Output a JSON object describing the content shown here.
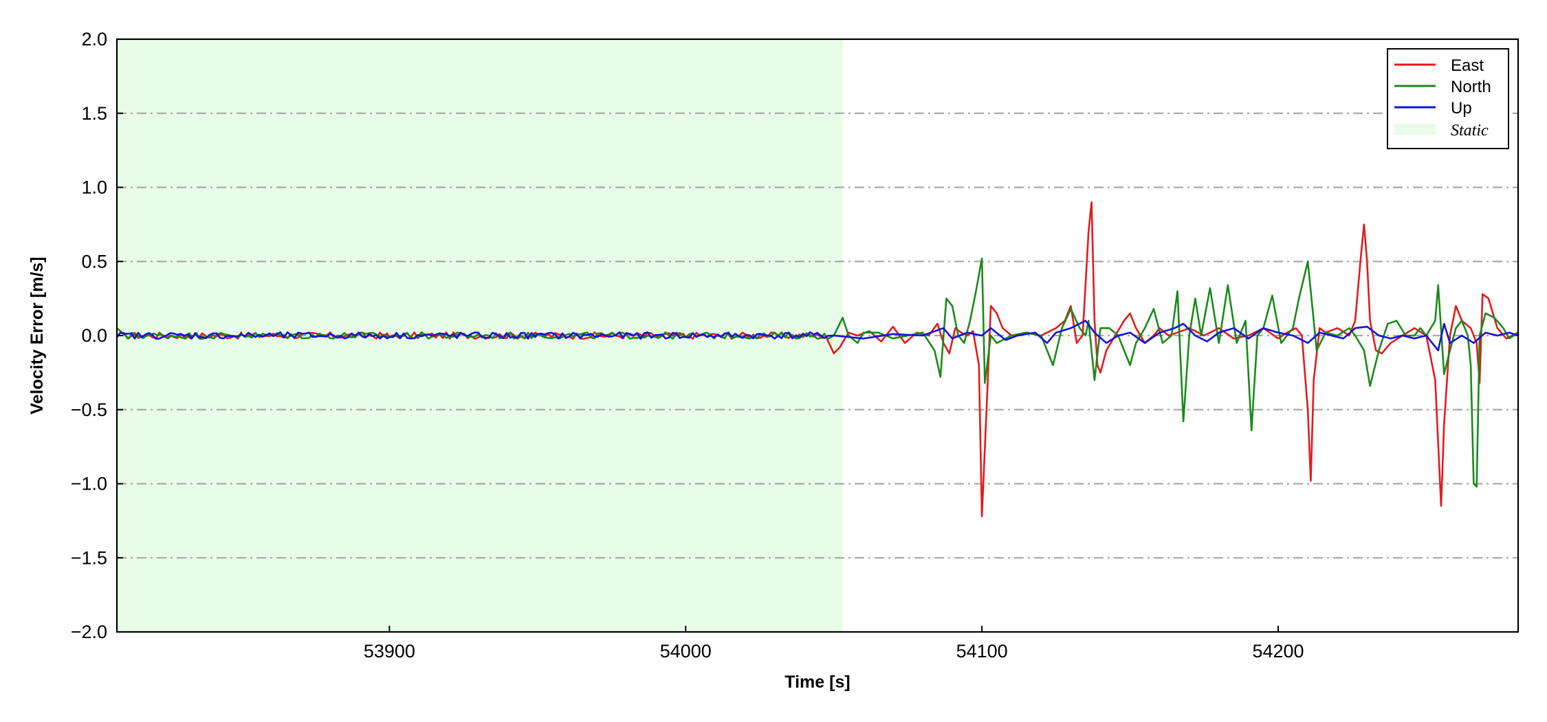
{
  "chart_data": {
    "type": "line",
    "title": "",
    "xlabel": "Time [s]",
    "ylabel": "Velocity Error [m/s]",
    "xlim": [
      53808,
      54281
    ],
    "ylim": [
      -2.0,
      2.0
    ],
    "xticks": [
      53900,
      54000,
      54100,
      54200
    ],
    "xtick_labels": [
      "53900",
      "54000",
      "54100",
      "54200"
    ],
    "yticks": [
      -2.0,
      -1.5,
      -1.0,
      -0.5,
      0.0,
      0.5,
      1.0,
      1.5,
      2.0
    ],
    "ytick_labels": [
      "−2.0",
      "−1.5",
      "−1.0",
      "−0.5",
      "0.0",
      "0.5",
      "1.0",
      "1.5",
      "2.0"
    ],
    "grid": "horizontal dash-dot at major y ticks",
    "legend_position": "top-right",
    "static_region": {
      "label": "Static",
      "x_start": 53808,
      "x_end": 54053,
      "color": "#e8fde8"
    },
    "series": [
      {
        "name": "East",
        "color": "#e41a1c",
        "points": [
          [
            53808,
            -0.01
          ],
          [
            53850,
            0.01
          ],
          [
            53900,
            -0.01
          ],
          [
            53950,
            0.01
          ],
          [
            54000,
            -0.01
          ],
          [
            54045,
            0.0
          ],
          [
            54050,
            -0.12
          ],
          [
            54052,
            -0.08
          ],
          [
            54055,
            0.02
          ],
          [
            54058,
            0.0
          ],
          [
            54062,
            0.03
          ],
          [
            54066,
            -0.04
          ],
          [
            54070,
            0.06
          ],
          [
            54074,
            -0.05
          ],
          [
            54078,
            0.02
          ],
          [
            54082,
            0.0
          ],
          [
            54085,
            0.08
          ],
          [
            54087,
            -0.05
          ],
          [
            54089,
            -0.12
          ],
          [
            54091,
            0.05
          ],
          [
            54093,
            0.02
          ],
          [
            54095,
            0.0
          ],
          [
            54097,
            0.03
          ],
          [
            54099,
            -0.2
          ],
          [
            54100,
            -1.22
          ],
          [
            54102,
            -0.3
          ],
          [
            54103,
            0.2
          ],
          [
            54105,
            0.15
          ],
          [
            54107,
            0.05
          ],
          [
            54110,
            0.0
          ],
          [
            54115,
            0.02
          ],
          [
            54120,
            0.0
          ],
          [
            54125,
            0.05
          ],
          [
            54128,
            0.1
          ],
          [
            54130,
            0.2
          ],
          [
            54132,
            -0.05
          ],
          [
            54134,
            0.0
          ],
          [
            54136,
            0.7
          ],
          [
            54137,
            0.9
          ],
          [
            54138,
            0.1
          ],
          [
            54139,
            -0.2
          ],
          [
            54140,
            -0.25
          ],
          [
            54142,
            -0.1
          ],
          [
            54145,
            0.0
          ],
          [
            54148,
            0.1
          ],
          [
            54150,
            0.15
          ],
          [
            54152,
            0.05
          ],
          [
            54155,
            -0.05
          ],
          [
            54158,
            0.0
          ],
          [
            54160,
            0.05
          ],
          [
            54163,
            0.0
          ],
          [
            54166,
            0.02
          ],
          [
            54170,
            0.05
          ],
          [
            54175,
            0.0
          ],
          [
            54180,
            0.05
          ],
          [
            54185,
            -0.02
          ],
          [
            54190,
            0.0
          ],
          [
            54195,
            0.05
          ],
          [
            54200,
            -0.02
          ],
          [
            54203,
            0.02
          ],
          [
            54206,
            0.05
          ],
          [
            54208,
            0.0
          ],
          [
            54210,
            -0.5
          ],
          [
            54211,
            -0.98
          ],
          [
            54212,
            -0.3
          ],
          [
            54214,
            0.05
          ],
          [
            54216,
            0.02
          ],
          [
            54220,
            0.05
          ],
          [
            54224,
            0.0
          ],
          [
            54226,
            0.1
          ],
          [
            54228,
            0.55
          ],
          [
            54229,
            0.75
          ],
          [
            54230,
            0.5
          ],
          [
            54231,
            0.1
          ],
          [
            54233,
            -0.1
          ],
          [
            54235,
            -0.12
          ],
          [
            54238,
            -0.05
          ],
          [
            54242,
            0.0
          ],
          [
            54246,
            0.05
          ],
          [
            54250,
            0.0
          ],
          [
            54253,
            -0.3
          ],
          [
            54255,
            -1.15
          ],
          [
            54256,
            -0.6
          ],
          [
            54258,
            0.0
          ],
          [
            54260,
            0.2
          ],
          [
            54262,
            0.1
          ],
          [
            54265,
            0.05
          ],
          [
            54267,
            -0.05
          ],
          [
            54268,
            -0.32
          ],
          [
            54269,
            0.28
          ],
          [
            54271,
            0.25
          ],
          [
            54274,
            0.05
          ],
          [
            54277,
            -0.02
          ],
          [
            54281,
            0.02
          ]
        ]
      },
      {
        "name": "North",
        "color": "#1a8a1a",
        "points": [
          [
            53808,
            0.05
          ],
          [
            53812,
            -0.02
          ],
          [
            53850,
            0.01
          ],
          [
            53900,
            -0.01
          ],
          [
            53950,
            0.01
          ],
          [
            54000,
            -0.01
          ],
          [
            54050,
            0.0
          ],
          [
            54053,
            0.12
          ],
          [
            54055,
            0.0
          ],
          [
            54058,
            -0.05
          ],
          [
            54060,
            0.02
          ],
          [
            54065,
            0.02
          ],
          [
            54070,
            -0.02
          ],
          [
            54075,
            0.0
          ],
          [
            54080,
            0.02
          ],
          [
            54084,
            -0.1
          ],
          [
            54086,
            -0.28
          ],
          [
            54088,
            0.25
          ],
          [
            54090,
            0.2
          ],
          [
            54092,
            0.0
          ],
          [
            54094,
            -0.05
          ],
          [
            54096,
            0.1
          ],
          [
            54098,
            0.3
          ],
          [
            54100,
            0.52
          ],
          [
            54101,
            -0.32
          ],
          [
            54103,
            0.0
          ],
          [
            54105,
            -0.05
          ],
          [
            54110,
            0.0
          ],
          [
            54115,
            0.02
          ],
          [
            54120,
            0.0
          ],
          [
            54124,
            -0.2
          ],
          [
            54127,
            0.05
          ],
          [
            54130,
            0.18
          ],
          [
            54133,
            0.05
          ],
          [
            54135,
            0.0
          ],
          [
            54136,
            0.1
          ],
          [
            54138,
            -0.3
          ],
          [
            54140,
            0.05
          ],
          [
            54143,
            0.05
          ],
          [
            54146,
            0.0
          ],
          [
            54150,
            -0.2
          ],
          [
            54152,
            -0.05
          ],
          [
            54155,
            0.05
          ],
          [
            54158,
            0.18
          ],
          [
            54161,
            -0.05
          ],
          [
            54164,
            0.0
          ],
          [
            54166,
            0.3
          ],
          [
            54168,
            -0.58
          ],
          [
            54170,
            0.0
          ],
          [
            54172,
            0.25
          ],
          [
            54174,
            0.0
          ],
          [
            54177,
            0.32
          ],
          [
            54180,
            -0.05
          ],
          [
            54183,
            0.34
          ],
          [
            54186,
            -0.05
          ],
          [
            54189,
            0.1
          ],
          [
            54191,
            -0.64
          ],
          [
            54193,
            0.0
          ],
          [
            54195,
            0.05
          ],
          [
            54198,
            0.27
          ],
          [
            54201,
            -0.05
          ],
          [
            54203,
            0.0
          ],
          [
            54205,
            0.05
          ],
          [
            54207,
            0.25
          ],
          [
            54210,
            0.5
          ],
          [
            54213,
            -0.1
          ],
          [
            54216,
            0.02
          ],
          [
            54220,
            0.0
          ],
          [
            54224,
            0.05
          ],
          [
            54226,
            0.0
          ],
          [
            54229,
            -0.1
          ],
          [
            54231,
            -0.34
          ],
          [
            54234,
            -0.1
          ],
          [
            54237,
            0.08
          ],
          [
            54240,
            0.1
          ],
          [
            54243,
            0.0
          ],
          [
            54246,
            0.0
          ],
          [
            54248,
            0.05
          ],
          [
            54250,
            0.0
          ],
          [
            54253,
            0.1
          ],
          [
            54254,
            0.34
          ],
          [
            54256,
            -0.26
          ],
          [
            54258,
            -0.1
          ],
          [
            54260,
            0.05
          ],
          [
            54262,
            0.1
          ],
          [
            54264,
            0.0
          ],
          [
            54265,
            -0.2
          ],
          [
            54266,
            -1.0
          ],
          [
            54267,
            -1.02
          ],
          [
            54268,
            0.0
          ],
          [
            54270,
            0.15
          ],
          [
            54273,
            0.12
          ],
          [
            54276,
            0.05
          ],
          [
            54278,
            -0.02
          ],
          [
            54281,
            0.02
          ]
        ]
      },
      {
        "name": "Up",
        "color": "#1414d8",
        "points": [
          [
            53808,
            -0.01
          ],
          [
            53850,
            0.01
          ],
          [
            53900,
            -0.01
          ],
          [
            53950,
            0.01
          ],
          [
            54000,
            -0.01
          ],
          [
            54050,
            0.0
          ],
          [
            54060,
            -0.02
          ],
          [
            54070,
            0.01
          ],
          [
            54080,
            0.0
          ],
          [
            54087,
            0.05
          ],
          [
            54090,
            -0.02
          ],
          [
            54095,
            0.02
          ],
          [
            54100,
            0.0
          ],
          [
            54103,
            0.05
          ],
          [
            54108,
            -0.03
          ],
          [
            54112,
            0.0
          ],
          [
            54118,
            0.02
          ],
          [
            54122,
            -0.05
          ],
          [
            54125,
            0.02
          ],
          [
            54130,
            0.05
          ],
          [
            54135,
            0.1
          ],
          [
            54138,
            0.02
          ],
          [
            54142,
            -0.05
          ],
          [
            54146,
            0.0
          ],
          [
            54150,
            0.02
          ],
          [
            54155,
            -0.05
          ],
          [
            54160,
            0.02
          ],
          [
            54165,
            0.05
          ],
          [
            54168,
            0.08
          ],
          [
            54172,
            0.0
          ],
          [
            54176,
            -0.04
          ],
          [
            54180,
            0.02
          ],
          [
            54185,
            0.05
          ],
          [
            54190,
            -0.02
          ],
          [
            54195,
            0.05
          ],
          [
            54200,
            0.02
          ],
          [
            54205,
            0.0
          ],
          [
            54210,
            -0.05
          ],
          [
            54214,
            0.02
          ],
          [
            54218,
            0.0
          ],
          [
            54222,
            -0.02
          ],
          [
            54226,
            0.05
          ],
          [
            54230,
            0.06
          ],
          [
            54234,
            0.0
          ],
          [
            54238,
            -0.02
          ],
          [
            54242,
            0.0
          ],
          [
            54246,
            -0.02
          ],
          [
            54250,
            0.0
          ],
          [
            54254,
            -0.1
          ],
          [
            54256,
            0.08
          ],
          [
            54258,
            -0.05
          ],
          [
            54262,
            0.0
          ],
          [
            54266,
            -0.05
          ],
          [
            54270,
            0.02
          ],
          [
            54274,
            0.0
          ],
          [
            54278,
            0.02
          ],
          [
            54281,
            0.0
          ]
        ]
      }
    ]
  }
}
